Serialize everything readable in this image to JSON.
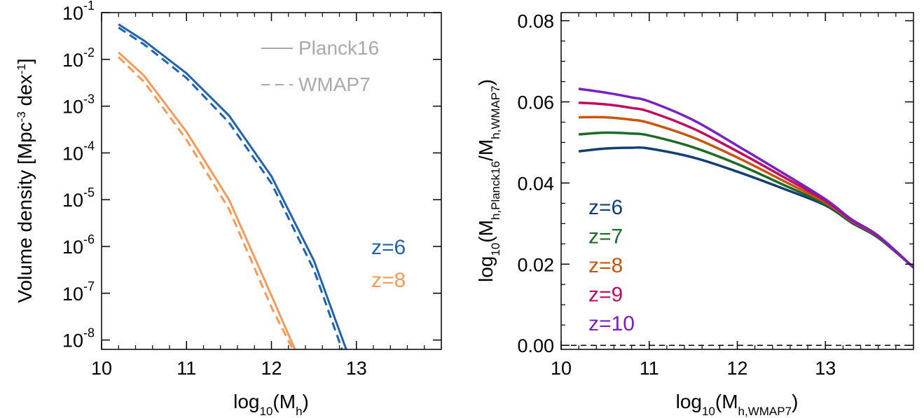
{
  "chart_data": [
    {
      "type": "line",
      "xlabel": {
        "base": "log",
        "sub": "10",
        "mid": "(M",
        "sub2": "h",
        "end": ")"
      },
      "ylabel": {
        "pre": "Volume density [Mpc",
        "sup1": "-3",
        "mid": " dex",
        "sup2": "-1",
        "end": "]"
      },
      "xlim": [
        10,
        14
      ],
      "ylim_log10": [
        -8.2,
        -1
      ],
      "yscale": "log",
      "x_ticks": [
        10,
        11,
        12,
        13
      ],
      "x_tick_labels": [
        "10",
        "11",
        "12",
        "13"
      ],
      "y_ticks": [
        -8,
        -7,
        -6,
        -5,
        -4,
        -3,
        -2,
        -1
      ],
      "y_tick_labels": [
        {
          "base": "10",
          "exp": "-8"
        },
        {
          "base": "10",
          "exp": "-7"
        },
        {
          "base": "10",
          "exp": "-6"
        },
        {
          "base": "10",
          "exp": "-5"
        },
        {
          "base": "10",
          "exp": "-4"
        },
        {
          "base": "10",
          "exp": "-3"
        },
        {
          "base": "10",
          "exp": "-2"
        },
        {
          "base": "10",
          "exp": "-1"
        }
      ],
      "style_legend": [
        {
          "label": "Planck16",
          "dash": "solid"
        },
        {
          "label": "WMAP7",
          "dash": "dashed"
        }
      ],
      "legend_color": "#aaaaaa",
      "series": [
        {
          "name": "z=6",
          "cosmology": "Planck16",
          "dash": "solid",
          "color": "#1f62b0",
          "x": [
            10.2,
            10.5,
            11.0,
            11.5,
            12.0,
            12.5,
            12.9
          ],
          "y_log10": [
            -1.25,
            -1.6,
            -2.3,
            -3.2,
            -4.5,
            -6.3,
            -8.3
          ]
        },
        {
          "name": "z=6",
          "cosmology": "WMAP7",
          "dash": "dashed",
          "color": "#1f62b0",
          "x": [
            10.2,
            10.5,
            11.0,
            11.5,
            12.0,
            12.5,
            12.85
          ],
          "y_log10": [
            -1.32,
            -1.68,
            -2.4,
            -3.35,
            -4.65,
            -6.5,
            -8.3
          ]
        },
        {
          "name": "z=8",
          "cosmology": "Planck16",
          "dash": "solid",
          "color": "#f79a58",
          "x": [
            10.2,
            10.5,
            11.0,
            11.5,
            12.0,
            12.3
          ],
          "y_log10": [
            -1.85,
            -2.35,
            -3.55,
            -5.0,
            -7.05,
            -8.3
          ]
        },
        {
          "name": "z=8",
          "cosmology": "WMAP7",
          "dash": "dashed",
          "color": "#f79a58",
          "x": [
            10.2,
            10.5,
            11.0,
            11.5,
            12.0,
            12.28
          ],
          "y_log10": [
            -1.95,
            -2.48,
            -3.72,
            -5.2,
            -7.3,
            -8.3
          ]
        }
      ],
      "redshift_legend": [
        {
          "label": "z=6",
          "color": "#1f62b0"
        },
        {
          "label": "z=8",
          "color": "#f79a58"
        }
      ]
    },
    {
      "type": "line",
      "xlabel": {
        "base": "log",
        "sub": "10",
        "mid": "(M",
        "sub2": "h,WMAP7",
        "end": ")"
      },
      "ylabel": {
        "base": "log",
        "sub": "10",
        "mid": "(M",
        "sub2": "h,Planck16",
        "mid2": "/M",
        "sub3": "h,WMAP7",
        "end": ")"
      },
      "xlim": [
        10,
        14
      ],
      "ylim": [
        -0.001,
        0.082
      ],
      "x_ticks": [
        10,
        11,
        12,
        13
      ],
      "x_tick_labels": [
        "10",
        "11",
        "12",
        "13"
      ],
      "y_ticks": [
        0.0,
        0.02,
        0.04,
        0.06,
        0.08
      ],
      "y_tick_labels": [
        "0.00",
        "0.02",
        "0.04",
        "0.06",
        "0.08"
      ],
      "series": [
        {
          "name": "z=6",
          "color": "#123f74",
          "x": [
            10.2,
            10.5,
            10.8,
            11.0,
            11.5,
            12.0,
            12.5,
            13.0,
            13.3,
            13.6,
            14.0
          ],
          "y": [
            0.0478,
            0.0485,
            0.0487,
            0.0485,
            0.0463,
            0.0428,
            0.0388,
            0.0345,
            0.0302,
            0.0265,
            0.0192
          ]
        },
        {
          "name": "z=7",
          "color": "#1d6a26",
          "x": [
            10.2,
            10.5,
            10.8,
            11.0,
            11.5,
            12.0,
            12.5,
            13.0,
            13.3,
            13.6,
            14.0
          ],
          "y": [
            0.052,
            0.0524,
            0.0522,
            0.0517,
            0.0488,
            0.0447,
            0.0398,
            0.0348,
            0.0304,
            0.0267,
            0.0192
          ]
        },
        {
          "name": "z=8",
          "color": "#c7560c",
          "x": [
            10.2,
            10.5,
            10.8,
            11.0,
            11.5,
            12.0,
            12.5,
            13.0,
            13.3,
            13.6,
            14.0
          ],
          "y": [
            0.0562,
            0.0562,
            0.0556,
            0.0548,
            0.0512,
            0.0463,
            0.0408,
            0.0352,
            0.0306,
            0.0268,
            0.0192
          ]
        },
        {
          "name": "z=9",
          "color": "#c20b5e",
          "x": [
            10.2,
            10.5,
            10.8,
            11.0,
            11.5,
            12.0,
            12.5,
            13.0,
            13.3,
            13.6,
            14.0
          ],
          "y": [
            0.0598,
            0.0594,
            0.0585,
            0.0576,
            0.0534,
            0.0478,
            0.0418,
            0.0356,
            0.0308,
            0.0269,
            0.0192
          ]
        },
        {
          "name": "z=10",
          "color": "#7b1fc2",
          "x": [
            10.2,
            10.5,
            10.8,
            11.0,
            11.5,
            12.0,
            12.5,
            13.0,
            13.3,
            13.6,
            14.0
          ],
          "y": [
            0.0632,
            0.0623,
            0.0611,
            0.0601,
            0.0555,
            0.0492,
            0.0427,
            0.036,
            0.031,
            0.027,
            0.0192
          ]
        }
      ],
      "redshift_legend": [
        {
          "label": "z=6",
          "color": "#123f74"
        },
        {
          "label": "z=7",
          "color": "#1d6a26"
        },
        {
          "label": "z=8",
          "color": "#c7560c"
        },
        {
          "label": "z=9",
          "color": "#c20b5e"
        },
        {
          "label": "z=10",
          "color": "#7b1fc2"
        }
      ]
    }
  ]
}
